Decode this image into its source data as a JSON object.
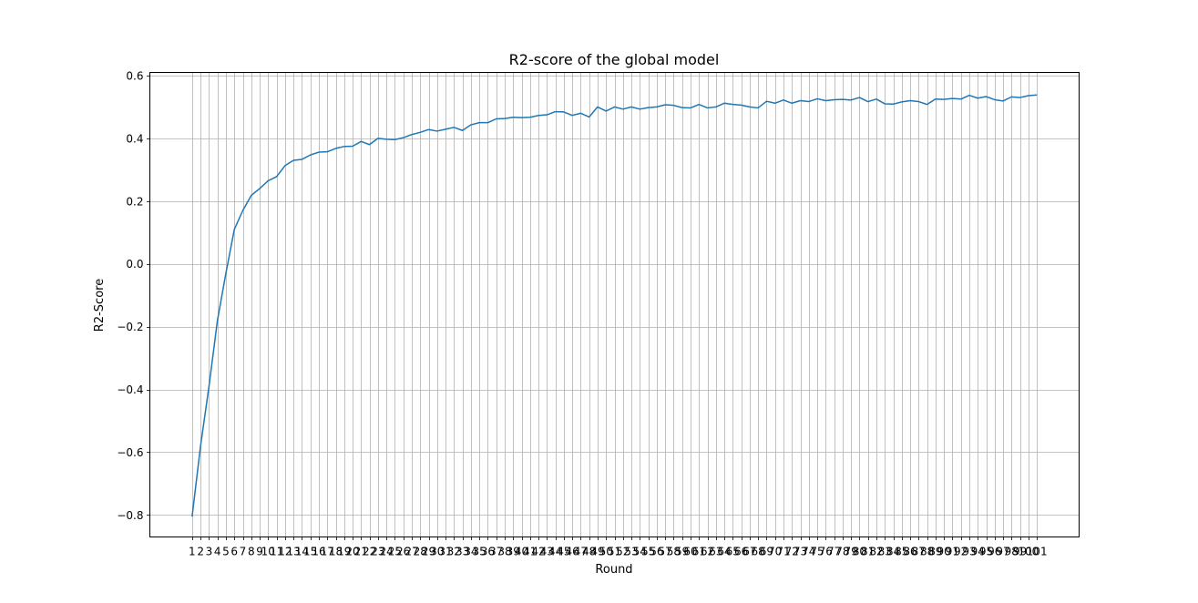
{
  "chart_data": {
    "type": "line",
    "title": "R2-score of the global model",
    "xlabel": "Round",
    "ylabel": "R2-Score",
    "x": [
      1,
      2,
      3,
      4,
      5,
      6,
      7,
      8,
      9,
      10,
      11,
      12,
      13,
      14,
      15,
      16,
      17,
      18,
      19,
      20,
      21,
      22,
      23,
      24,
      25,
      26,
      27,
      28,
      29,
      30,
      31,
      32,
      33,
      34,
      35,
      36,
      37,
      38,
      39,
      40,
      41,
      42,
      43,
      44,
      45,
      46,
      47,
      48,
      49,
      50,
      51,
      52,
      53,
      54,
      55,
      56,
      57,
      58,
      59,
      60,
      61,
      62,
      63,
      64,
      65,
      66,
      67,
      68,
      69,
      70,
      71,
      72,
      73,
      74,
      75,
      76,
      77,
      78,
      79,
      80,
      81,
      82,
      83,
      84,
      85,
      86,
      87,
      88,
      89,
      90,
      91,
      92,
      93,
      94,
      95,
      96,
      97,
      98,
      99,
      100,
      101
    ],
    "x_tick_labels": [
      "1",
      "2",
      "3",
      "4",
      "5",
      "6",
      "7",
      "8",
      "9",
      "10",
      "11",
      "12",
      "13",
      "14",
      "15",
      "16",
      "17",
      "18",
      "19",
      "20",
      "21",
      "22",
      "23",
      "24",
      "25",
      "26",
      "27",
      "28",
      "29",
      "30",
      "31",
      "32",
      "33",
      "34",
      "35",
      "36",
      "37",
      "38",
      "39",
      "40",
      "41",
      "42",
      "43",
      "44",
      "45",
      "46",
      "47",
      "48",
      "49",
      "50",
      "51",
      "52",
      "53",
      "54",
      "55",
      "56",
      "57",
      "58",
      "59",
      "60",
      "61",
      "62",
      "63",
      "64",
      "65",
      "66",
      "67",
      "68",
      "69",
      "70",
      "71",
      "72",
      "73",
      "74",
      "75",
      "76",
      "77",
      "78",
      "79",
      "80",
      "81",
      "82",
      "83",
      "84",
      "85",
      "86",
      "87",
      "88",
      "89",
      "90",
      "91",
      "92",
      "93",
      "94",
      "95",
      "96",
      "97",
      "98",
      "99",
      "100",
      "101"
    ],
    "series": [
      {
        "values": [
          -0.805,
          -0.58,
          -0.39,
          -0.18,
          -0.03,
          0.11,
          0.17,
          0.218,
          0.24,
          0.265,
          0.278,
          0.313,
          0.33,
          0.333,
          0.347,
          0.356,
          0.357,
          0.368,
          0.374,
          0.375,
          0.39,
          0.38,
          0.4,
          0.397,
          0.396,
          0.402,
          0.412,
          0.419,
          0.428,
          0.423,
          0.429,
          0.435,
          0.425,
          0.443,
          0.45,
          0.45,
          0.462,
          0.463,
          0.467,
          0.466,
          0.467,
          0.473,
          0.475,
          0.485,
          0.484,
          0.473,
          0.48,
          0.468,
          0.5,
          0.487,
          0.5,
          0.493,
          0.5,
          0.493,
          0.498,
          0.5,
          0.507,
          0.505,
          0.498,
          0.497,
          0.508,
          0.497,
          0.5,
          0.512,
          0.508,
          0.506,
          0.5,
          0.497,
          0.518,
          0.512,
          0.522,
          0.512,
          0.52,
          0.517,
          0.526,
          0.52,
          0.523,
          0.524,
          0.522,
          0.53,
          0.517,
          0.525,
          0.51,
          0.509,
          0.516,
          0.52,
          0.517,
          0.508,
          0.525,
          0.524,
          0.527,
          0.525,
          0.537,
          0.528,
          0.533,
          0.523,
          0.519,
          0.532,
          0.53,
          0.536,
          0.538
        ],
        "color": "#1f77b4"
      }
    ],
    "ylim": [
      -0.87,
      0.61
    ],
    "y_ticks": [
      -0.8,
      -0.6,
      -0.4,
      -0.2,
      0.0,
      0.2,
      0.4,
      0.6
    ],
    "y_tick_labels": [
      "−0.8",
      "−0.6",
      "−0.4",
      "−0.2",
      "0.0",
      "0.2",
      "0.4",
      "0.6"
    ],
    "grid": true,
    "colors": {
      "line": "#1f77b4",
      "grid": "#b0b0b0",
      "axes": "#000000"
    }
  }
}
